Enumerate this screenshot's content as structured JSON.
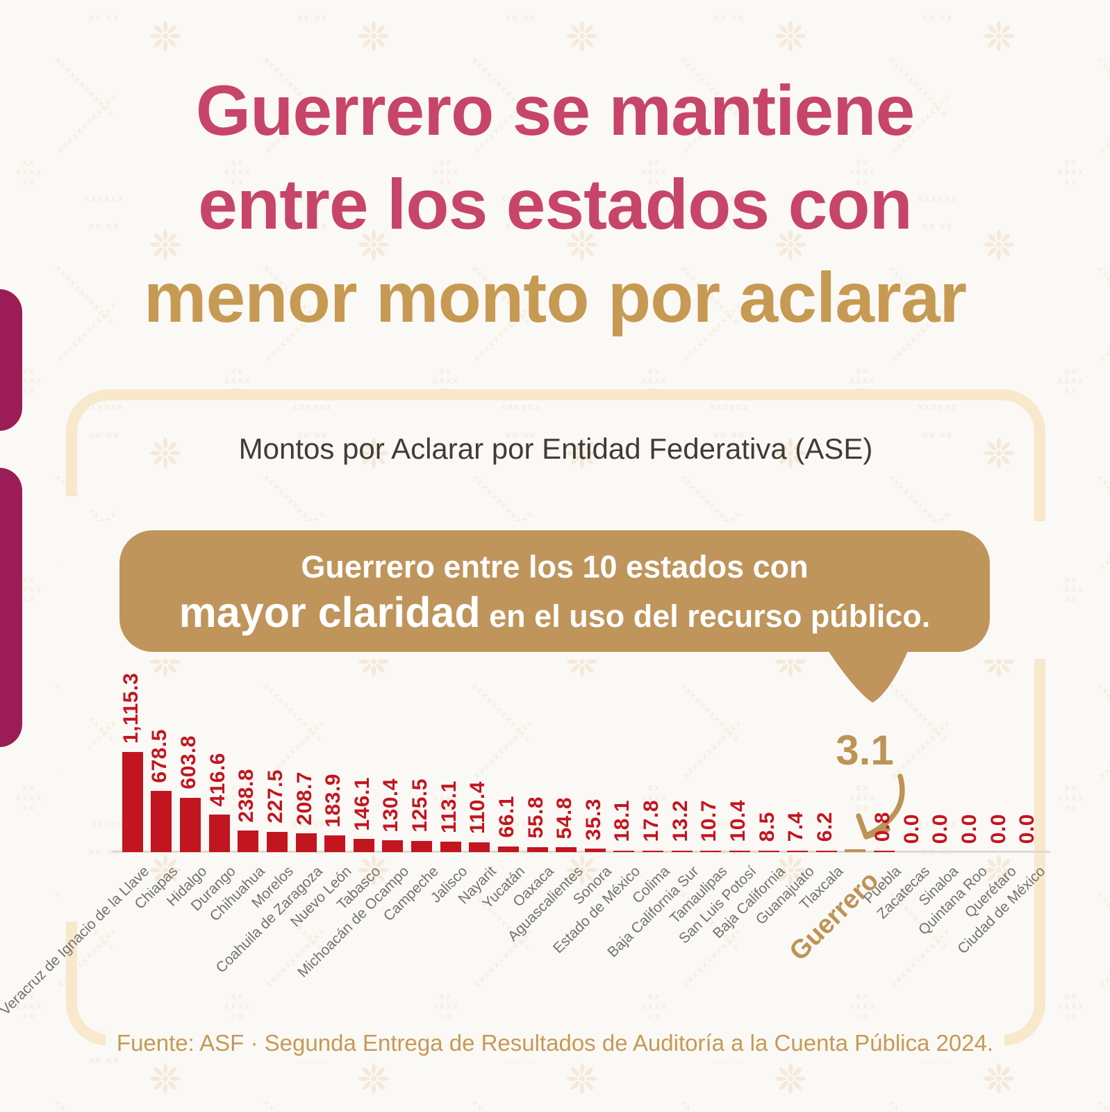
{
  "title": {
    "line1": "Guerrero se mantiene",
    "line2": "entre los estados con",
    "line3": "menor monto por aclarar"
  },
  "callout": {
    "line1": "Guerrero entre los 10 estados con",
    "line2_bold": "mayor claridad",
    "line2_rest": " en el uso del recurso público."
  },
  "highlight_callout_value": "3.1",
  "footer": "Fuente: ASF · Segunda Entrega de Resultados de Auditoría a la Cuenta Pública 2024.",
  "colors": {
    "title_pink": "#C74569",
    "title_gold": "#C69A52",
    "bubble_gold": "#BF955C",
    "accent_gold": "#BD9356",
    "bar_red": "#C3151F",
    "left_accent_magenta": "#9C1C55",
    "frame_cream": "#F8E8CC",
    "background": "#FBF9F6"
  },
  "chart_data": {
    "type": "bar",
    "title": "Montos por Aclarar por Entidad Federativa (ASE)",
    "categories": [
      "Veracruz de Ignacio de la Llave",
      "Chiapas",
      "Hidalgo",
      "Durango",
      "Chihuahua",
      "Morelos",
      "Coahuila de Zaragoza",
      "Nuevo León",
      "Tabasco",
      "Michoacán de Ocampo",
      "Campeche",
      "Jalisco",
      "Nayarit",
      "Yucatán",
      "Oaxaca",
      "Aguascalientes",
      "Sonora",
      "Estado de México",
      "Colima",
      "Baja California Sur",
      "Tamaulipas",
      "San Luis Potosí",
      "Baja California",
      "Guanajuato",
      "Tlaxcala",
      "Guerrero",
      "Puebla",
      "Zacatecas",
      "Sinaloa",
      "Quintana Roo",
      "Querétaro",
      "Ciudad de México"
    ],
    "values": [
      1115.3,
      678.5,
      603.8,
      416.6,
      238.8,
      227.5,
      208.7,
      183.9,
      146.1,
      130.4,
      125.5,
      113.1,
      110.4,
      66.1,
      55.8,
      54.8,
      35.3,
      18.1,
      17.8,
      13.2,
      10.7,
      10.4,
      8.5,
      7.4,
      6.2,
      3.1,
      0.8,
      0.0,
      0.0,
      0.0,
      0.0,
      0.0
    ],
    "value_labels": [
      "1,115.3",
      "678.5",
      "603.8",
      "416.6",
      "238.8",
      "227.5",
      "208.7",
      "183.9",
      "146.1",
      "130.4",
      "125.5",
      "113.1",
      "110.4",
      "66.1",
      "55.8",
      "54.8",
      "35.3",
      "18.1",
      "17.8",
      "13.2",
      "10.7",
      "10.4",
      "8.5",
      "7.4",
      "6.2",
      "3.1",
      "0.8",
      "0.0",
      "0.0",
      "0.0",
      "0.0",
      "0.0"
    ],
    "highlight_category": "Guerrero",
    "highlight_value": 3.1,
    "xlabel": "",
    "ylabel": "",
    "ylim": [
      0,
      1115.3
    ],
    "grid": false,
    "legend": "none"
  }
}
